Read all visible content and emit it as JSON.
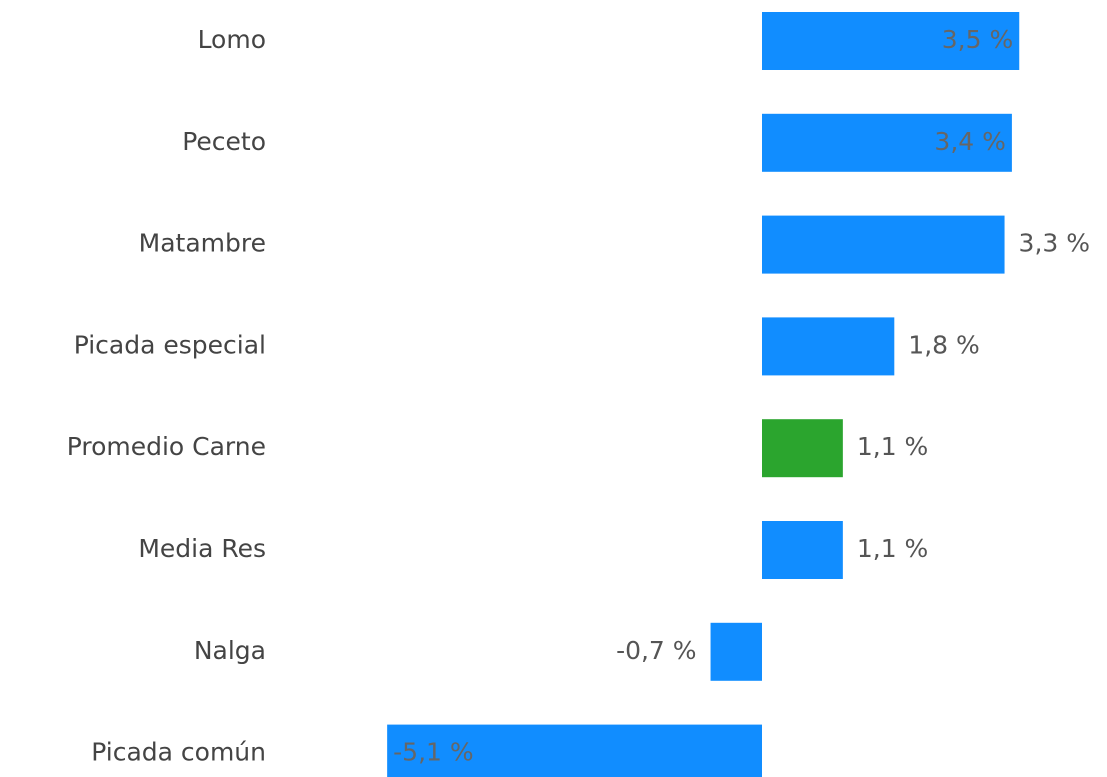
{
  "chart_data": {
    "type": "barh",
    "categories": [
      "Lomo",
      "Peceto",
      "Matambre",
      "Picada especial",
      "Promedio Carne",
      "Media Res",
      "Nalga",
      "Picada común"
    ],
    "values": [
      3.5,
      3.4,
      3.3,
      1.8,
      1.1,
      1.1,
      -0.7,
      -5.1
    ],
    "value_labels": [
      "3,5 %",
      "3,4 %",
      "3,3 %",
      "1,8 %",
      "1,1 %",
      "1,1 %",
      "-0,7 %",
      "-5,1 %"
    ],
    "colors": [
      "#118dff",
      "#118dff",
      "#118dff",
      "#118dff",
      "#2ba52e",
      "#118dff",
      "#118dff",
      "#118dff"
    ]
  }
}
